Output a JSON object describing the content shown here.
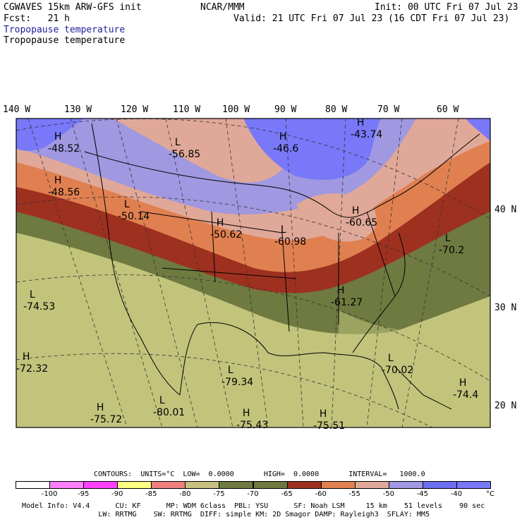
{
  "header": {
    "model": "CGWAVES 15km ARW-GFS init",
    "center": "NCAR/MMM",
    "init": "Init: 00 UTC Fri 07 Jul 23",
    "fcst": "Fcst:   21 h",
    "valid": "Valid: 21 UTC Fri 07 Jul 23 (16 CDT Fri 07 Jul 23)",
    "field_blue": "Tropopause temperature",
    "field_black": "Tropopause temperature"
  },
  "lon_labels": [
    "140 W",
    "130 W",
    "120 W",
    "110 W",
    "100 W",
    "90 W",
    "80 W",
    "70 W",
    "60 W"
  ],
  "lat_labels": [
    "40 N",
    "30 N",
    "20 N"
  ],
  "map_labels": [
    {
      "type": "H",
      "value": "-48.52"
    },
    {
      "type": "L",
      "value": "-56.85"
    },
    {
      "type": "H",
      "value": "-46.6"
    },
    {
      "type": "H",
      "value": "-43.74"
    },
    {
      "type": "H",
      "value": "-48.56"
    },
    {
      "type": "L",
      "value": "-50.14"
    },
    {
      "type": "H",
      "value": "-50.62"
    },
    {
      "type": "L",
      "value": "-60.98"
    },
    {
      "type": "H",
      "value": "-60.65"
    },
    {
      "type": "L",
      "value": "-70.2"
    },
    {
      "type": "H",
      "value": "-61.27"
    },
    {
      "type": "L",
      "value": "-74.53"
    },
    {
      "type": "H",
      "value": "-72.32"
    },
    {
      "type": "L",
      "value": "-79.34"
    },
    {
      "type": "L",
      "value": "-70.02"
    },
    {
      "type": "H",
      "value": "-74.4"
    },
    {
      "type": "H",
      "value": "-75.72"
    },
    {
      "type": "L",
      "value": "-80.01"
    },
    {
      "type": "H",
      "value": "-75.43"
    },
    {
      "type": "H",
      "value": "-75.51"
    }
  ],
  "contours_line": "CONTOURS:  UNITS=°C  LOW=  0.0000       HIGH=  0.0000       INTERVAL=   1000.0",
  "colorbar": {
    "colors": [
      "#ffffff",
      "#ff80ff",
      "#ff40ff",
      "#ffff80",
      "#f08080",
      "#c8c080",
      "#6e7a40",
      "#6e7a40",
      "#9e3020",
      "#e08050",
      "#e0a898",
      "#a098e0",
      "#6e6ef0",
      "#7878f8"
    ],
    "labels": [
      "-100",
      "-95",
      "-90",
      "-85",
      "-80",
      "-75",
      "-70",
      "-65",
      "-60",
      "-55",
      "-50",
      "-45",
      "-40",
      "°C"
    ]
  },
  "footer": {
    "line1": "Model Info: V4.4      CU: KF      MP: WDM 6class  PBL: YSU      SF: Noah LSM     15 km    51 levels    90 sec",
    "line2": "                  LW: RRTMG    SW: RRTMG  DIFF: simple KM: 2D Smagor DAMP: Rayleigh3  SFLAY: MM5"
  }
}
